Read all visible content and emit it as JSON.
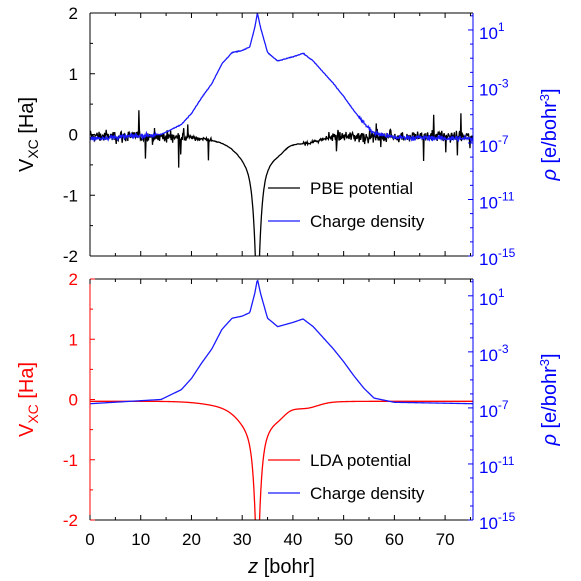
{
  "chart_data": [
    {
      "type": "line",
      "y1label_main": "V",
      "y1label_sub": "XC",
      "y1label_unit": " [Ha]",
      "y2label_main": "ρ",
      "y2label_unit_pre": " [e/bohr",
      "y2label_unit_sup": "3",
      "y2label_unit_post": "]",
      "xlim": [
        0,
        75.5
      ],
      "ylim": [
        -2,
        2
      ],
      "y2lim_log10": [
        -15,
        2.2
      ],
      "y1_ticks": [
        "2",
        "1",
        "0",
        "-1",
        "-2"
      ],
      "y2_ticks": [
        {
          "base": "10",
          "exp": "1"
        },
        {
          "base": "10",
          "exp": "-3"
        },
        {
          "base": "10",
          "exp": "-7"
        },
        {
          "base": "10",
          "exp": "-11"
        },
        {
          "base": "10",
          "exp": "-15"
        }
      ],
      "legend_position": "lower-right",
      "series": [
        {
          "name": "PBE potential",
          "axis": "left",
          "color": "#000000",
          "kind": "potential",
          "noisy": true
        },
        {
          "name": "Charge density",
          "axis": "right",
          "color": "#1a1aff",
          "kind": "density",
          "noisy": true
        }
      ]
    },
    {
      "type": "line",
      "y1label_main": "V",
      "y1label_sub": "XC",
      "y1label_unit": " [Ha]",
      "y2label_main": "ρ",
      "y2label_unit_pre": " [e/bohr",
      "y2label_unit_sup": "3",
      "y2label_unit_post": "]",
      "xlabel_main": "z",
      "xlabel_unit": " [bohr]",
      "xlim": [
        0,
        75.5
      ],
      "ylim": [
        -2,
        2
      ],
      "y2lim_log10": [
        -15,
        2.2
      ],
      "x_ticks": [
        "0",
        "10",
        "20",
        "30",
        "40",
        "50",
        "60",
        "70"
      ],
      "y1_ticks": [
        "2",
        "1",
        "0",
        "-1",
        "-2"
      ],
      "y2_ticks": [
        {
          "base": "10",
          "exp": "1"
        },
        {
          "base": "10",
          "exp": "-3"
        },
        {
          "base": "10",
          "exp": "-7"
        },
        {
          "base": "10",
          "exp": "-11"
        },
        {
          "base": "10",
          "exp": "-15"
        }
      ],
      "legend_position": "lower-right",
      "series": [
        {
          "name": "LDA potential",
          "axis": "left",
          "color": "#ff0000",
          "kind": "potential",
          "noisy": false
        },
        {
          "name": "Charge density",
          "axis": "right",
          "color": "#1a1aff",
          "kind": "density",
          "noisy": false
        }
      ]
    }
  ],
  "colors": {
    "left_axis_top": "#000000",
    "left_axis_bottom": "#ff0000",
    "right_axis": "#0000ff"
  }
}
